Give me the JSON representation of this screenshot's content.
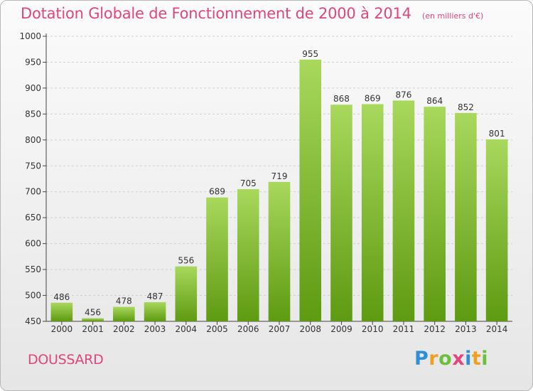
{
  "header": {
    "title": "Dotation Globale de Fonctionnement de 2000 à 2014",
    "unit": "(en milliers d'€)"
  },
  "commune": "DOUSSARD",
  "logo": {
    "text": "Proxiti",
    "letters": [
      "P",
      "r",
      "o",
      "x",
      "i",
      "t",
      "i"
    ],
    "colors": [
      "#2f8fd6",
      "#f0a020",
      "#6cbf3a",
      "#e0457b",
      "#2f8fd6",
      "#f0a020",
      "#6cbf3a"
    ]
  },
  "colors": {
    "accent": "#e0457b",
    "bar_top": "#a8d85c",
    "bar_bottom": "#5e9a12",
    "grid": "#cfcfcf"
  },
  "chart_data": {
    "type": "bar",
    "title": "Dotation Globale de Fonctionnement de 2000 à 2014",
    "subtitle": "(en milliers d'€)",
    "xlabel": "",
    "ylabel": "",
    "categories": [
      "2000",
      "2001",
      "2002",
      "2003",
      "2004",
      "2005",
      "2006",
      "2007",
      "2008",
      "2009",
      "2010",
      "2011",
      "2012",
      "2013",
      "2014"
    ],
    "values": [
      486,
      456,
      478,
      487,
      556,
      689,
      705,
      719,
      955,
      868,
      869,
      876,
      864,
      852,
      801
    ],
    "ylim": [
      450,
      1000
    ],
    "yticks": [
      450,
      500,
      550,
      600,
      650,
      700,
      750,
      800,
      850,
      900,
      950,
      1000
    ],
    "grid": true,
    "data_labels": true
  }
}
